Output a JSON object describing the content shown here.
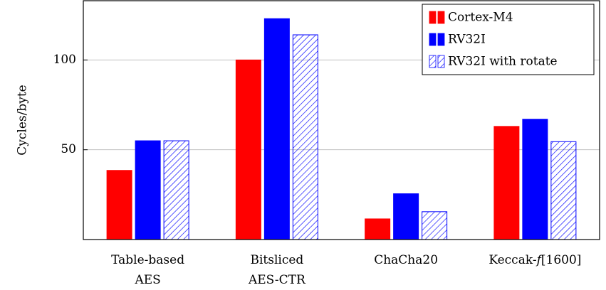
{
  "chart_data": {
    "type": "bar",
    "title": "",
    "xlabel": "",
    "ylabel": "Cycles/byte",
    "ylim": [
      0,
      133
    ],
    "yticks": [
      50,
      100
    ],
    "grid": "horizontal",
    "legend_position": "top-right",
    "categories": [
      [
        "Table-based",
        "AES"
      ],
      [
        "Bitsliced",
        "AES-CTR"
      ],
      [
        "ChaCha20"
      ],
      [
        "Keccak-",
        "f",
        "[1600]"
      ]
    ],
    "series": [
      {
        "name": "Cortex-M4",
        "values": [
          38.5,
          100,
          11.5,
          63
        ],
        "color": "#ff0000",
        "pattern": "solid"
      },
      {
        "name": "RV32I",
        "values": [
          55,
          123,
          25.5,
          67
        ],
        "color": "#0000ff",
        "pattern": "solid"
      },
      {
        "name": "RV32I with rotate",
        "values": [
          55,
          114,
          15.5,
          54.5
        ],
        "color": "#0000ff",
        "pattern": "hatch"
      }
    ]
  }
}
